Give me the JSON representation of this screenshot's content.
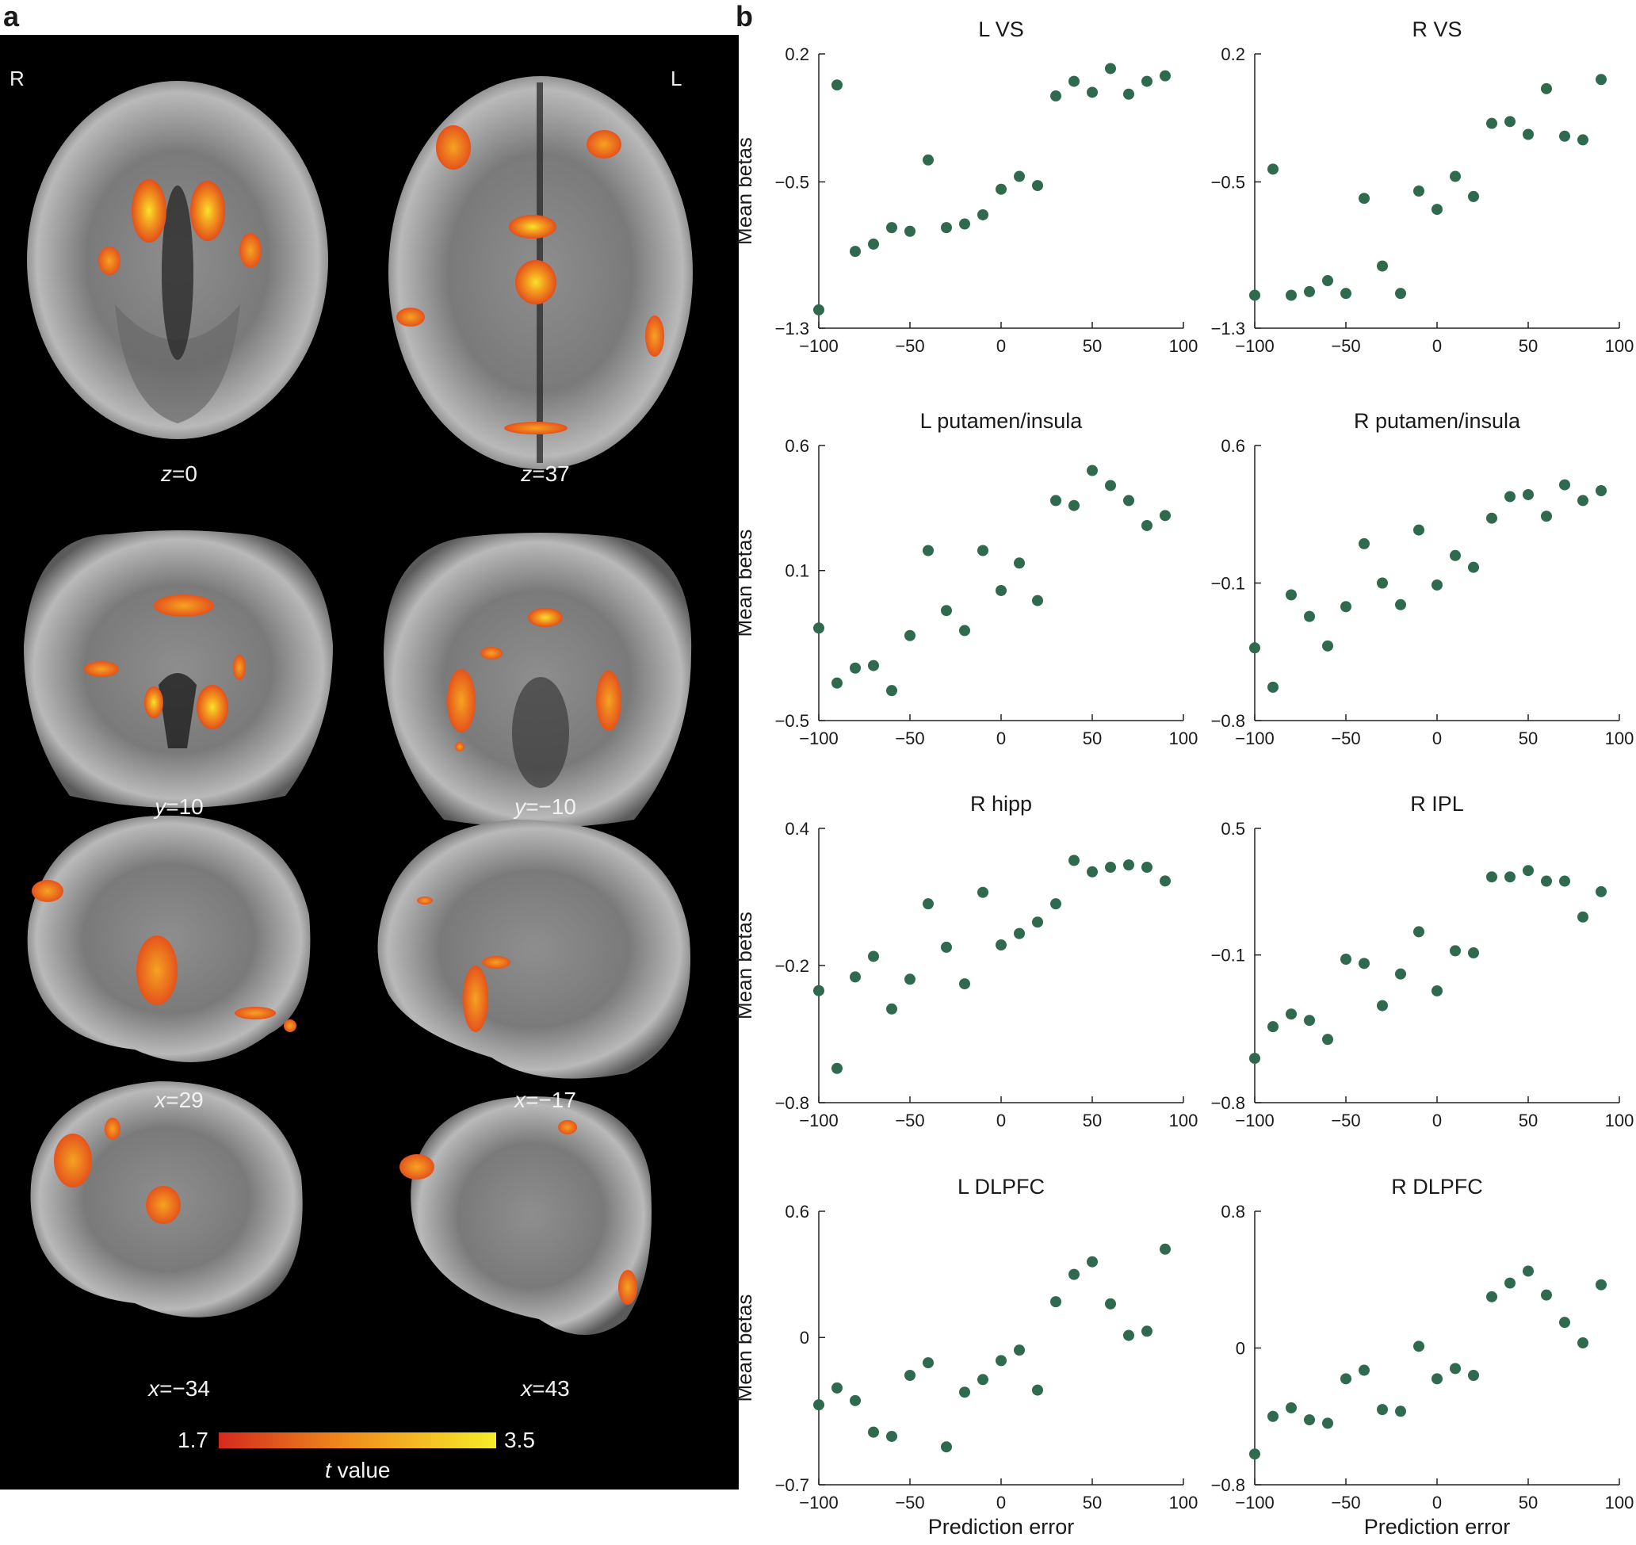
{
  "panel_a": {
    "letter": "a",
    "orient_left": "R",
    "orient_right": "L",
    "slices": [
      {
        "name": "z",
        "value": "0"
      },
      {
        "name": "z",
        "value": "37"
      },
      {
        "name": "y",
        "value": "10"
      },
      {
        "name": "y",
        "value": "−10"
      },
      {
        "name": "x",
        "value": "29"
      },
      {
        "name": "x",
        "value": "−17"
      },
      {
        "name": "x",
        "value": "−34"
      },
      {
        "name": "x",
        "value": "43"
      }
    ],
    "colorbar": {
      "min_label": "1.7",
      "max_label": "3.5",
      "label_var": "t",
      "label_rest": " value",
      "low_color": "#d42a1e",
      "mid_color": "#f08a1c",
      "high_color": "#f6ec2a"
    }
  },
  "panel_b": {
    "letter": "b"
  },
  "colors": {
    "dot": "#2f6a4f",
    "brain_bg": "#000000"
  },
  "chart_data": [
    {
      "type": "scatter",
      "title": "L VS",
      "ylabel": "Mean betas",
      "xlabel": "",
      "xlim": [
        -100,
        100
      ],
      "ylim": [
        -1.3,
        0.2
      ],
      "xticks": [
        -100,
        -50,
        0,
        50,
        100
      ],
      "yticks": [
        -1.3,
        -0.5,
        0.2
      ],
      "xticklabels": [
        "−100",
        "−50",
        "0",
        "50",
        "100"
      ],
      "yticklabels": [
        "−1.3",
        "−0.5",
        "0.2"
      ],
      "x": [
        -100,
        -90,
        -80,
        -70,
        -60,
        -50,
        -40,
        -30,
        -20,
        -10,
        0,
        10,
        20,
        30,
        40,
        50,
        60,
        70,
        80,
        90
      ],
      "y": [
        -1.2,
        0.03,
        -0.88,
        -0.84,
        -0.75,
        -0.77,
        -0.38,
        -0.75,
        -0.73,
        -0.68,
        -0.54,
        -0.47,
        -0.52,
        -0.03,
        0.05,
        -0.01,
        0.12,
        -0.02,
        0.05,
        0.08
      ]
    },
    {
      "type": "scatter",
      "title": "R VS",
      "ylabel": "",
      "xlabel": "",
      "xlim": [
        -100,
        100
      ],
      "ylim": [
        -1.3,
        0.2
      ],
      "xticks": [
        -100,
        -50,
        0,
        50,
        100
      ],
      "yticks": [
        -1.3,
        -0.5,
        0.2
      ],
      "xticklabels": [
        "−100",
        "−50",
        "0",
        "50",
        "100"
      ],
      "yticklabels": [
        "−1.3",
        "−0.5",
        "0.2"
      ],
      "x": [
        -100,
        -90,
        -80,
        -70,
        -60,
        -50,
        -40,
        -30,
        -20,
        -10,
        0,
        10,
        20,
        30,
        40,
        50,
        60,
        70,
        80,
        90
      ],
      "y": [
        -1.12,
        -0.43,
        -1.12,
        -1.1,
        -1.04,
        -1.11,
        -0.59,
        -0.96,
        -1.11,
        -0.55,
        -0.65,
        -0.47,
        -0.58,
        -0.18,
        -0.17,
        -0.24,
        0.01,
        -0.25,
        -0.27,
        0.06
      ]
    },
    {
      "type": "scatter",
      "title": "L putamen/insula",
      "ylabel": "Mean betas",
      "xlabel": "",
      "xlim": [
        -100,
        100
      ],
      "ylim": [
        -0.5,
        0.6
      ],
      "xticks": [
        -100,
        -50,
        0,
        50,
        100
      ],
      "yticks": [
        -0.5,
        0.1,
        0.6
      ],
      "xticklabels": [
        "−100",
        "−50",
        "0",
        "50",
        "100"
      ],
      "yticklabels": [
        "−0.5",
        "0.1",
        "0.6"
      ],
      "x": [
        -100,
        -90,
        -80,
        -70,
        -60,
        -50,
        -40,
        -30,
        -20,
        -10,
        0,
        10,
        20,
        30,
        40,
        50,
        60,
        70,
        80,
        90
      ],
      "y": [
        -0.13,
        -0.35,
        -0.29,
        -0.28,
        -0.38,
        -0.16,
        0.18,
        -0.06,
        -0.14,
        0.18,
        0.02,
        0.13,
        -0.02,
        0.38,
        0.36,
        0.5,
        0.44,
        0.38,
        0.28,
        0.32
      ]
    },
    {
      "type": "scatter",
      "title": "R putamen/insula",
      "ylabel": "",
      "xlabel": "",
      "xlim": [
        -100,
        100
      ],
      "ylim": [
        -0.8,
        0.6
      ],
      "xticks": [
        -100,
        -50,
        0,
        50,
        100
      ],
      "yticks": [
        -0.8,
        -0.1,
        0.6
      ],
      "xticklabels": [
        "−100",
        "−50",
        "0",
        "50",
        "100"
      ],
      "yticklabels": [
        "−0.8",
        "−0.1",
        "0.6"
      ],
      "x": [
        -100,
        -90,
        -80,
        -70,
        -60,
        -50,
        -40,
        -30,
        -20,
        -10,
        0,
        10,
        20,
        30,
        40,
        50,
        60,
        70,
        80,
        90
      ],
      "y": [
        -0.43,
        -0.63,
        -0.16,
        -0.27,
        -0.42,
        -0.22,
        0.1,
        -0.1,
        -0.21,
        0.17,
        -0.11,
        0.04,
        -0.02,
        0.23,
        0.34,
        0.35,
        0.24,
        0.4,
        0.32,
        0.37
      ]
    },
    {
      "type": "scatter",
      "title": "R hipp",
      "ylabel": "Mean betas",
      "xlabel": "",
      "xlim": [
        -100,
        100
      ],
      "ylim": [
        -0.8,
        0.4
      ],
      "xticks": [
        -100,
        -50,
        0,
        50,
        100
      ],
      "yticks": [
        -0.8,
        -0.2,
        0.4
      ],
      "xticklabels": [
        "−100",
        "−50",
        "0",
        "50",
        "100"
      ],
      "yticklabels": [
        "−0.8",
        "−0.2",
        "0.4"
      ],
      "x": [
        -100,
        -90,
        -80,
        -70,
        -60,
        -50,
        -40,
        -30,
        -20,
        -10,
        0,
        10,
        20,
        30,
        40,
        50,
        60,
        70,
        80,
        90
      ],
      "y": [
        -0.31,
        -0.65,
        -0.25,
        -0.16,
        -0.39,
        -0.26,
        0.07,
        -0.12,
        -0.28,
        0.12,
        -0.11,
        -0.06,
        -0.01,
        0.07,
        0.26,
        0.21,
        0.23,
        0.24,
        0.23,
        0.17
      ]
    },
    {
      "type": "scatter",
      "title": "R IPL",
      "ylabel": "",
      "xlabel": "",
      "xlim": [
        -100,
        100
      ],
      "ylim": [
        -0.8,
        0.5
      ],
      "xticks": [
        -100,
        -50,
        0,
        50,
        100
      ],
      "yticks": [
        -0.8,
        -0.1,
        0.5
      ],
      "xticklabels": [
        "−100",
        "−50",
        "0",
        "50",
        "100"
      ],
      "yticklabels": [
        "−0.8",
        "−0.1",
        "0.5"
      ],
      "x": [
        -100,
        -90,
        -80,
        -70,
        -60,
        -50,
        -40,
        -30,
        -20,
        -10,
        0,
        10,
        20,
        30,
        40,
        50,
        60,
        70,
        80,
        90
      ],
      "y": [
        -0.59,
        -0.44,
        -0.38,
        -0.41,
        -0.5,
        -0.12,
        -0.14,
        -0.34,
        -0.19,
        0.01,
        -0.27,
        -0.08,
        -0.09,
        0.27,
        0.27,
        0.3,
        0.25,
        0.25,
        0.08,
        0.2
      ]
    },
    {
      "type": "scatter",
      "title": "L DLPFC",
      "ylabel": "Mean betas",
      "xlabel": "Prediction error",
      "xlim": [
        -100,
        100
      ],
      "ylim": [
        -0.7,
        0.6
      ],
      "xticks": [
        -100,
        -50,
        0,
        50,
        100
      ],
      "yticks": [
        -0.7,
        0,
        0.6
      ],
      "xticklabels": [
        "−100",
        "−50",
        "0",
        "50",
        "100"
      ],
      "yticklabels": [
        "−0.7",
        "0",
        "0.6"
      ],
      "x": [
        -100,
        -90,
        -80,
        -70,
        -60,
        -50,
        -40,
        -30,
        -20,
        -10,
        0,
        10,
        20,
        30,
        40,
        50,
        60,
        70,
        80,
        90
      ],
      "y": [
        -0.32,
        -0.24,
        -0.3,
        -0.45,
        -0.47,
        -0.18,
        -0.12,
        -0.52,
        -0.26,
        -0.2,
        -0.11,
        -0.06,
        -0.25,
        0.17,
        0.3,
        0.36,
        0.16,
        0.01,
        0.03,
        0.42
      ]
    },
    {
      "type": "scatter",
      "title": "R DLPFC",
      "ylabel": "",
      "xlabel": "Prediction error",
      "xlim": [
        -100,
        100
      ],
      "ylim": [
        -0.8,
        0.8
      ],
      "xticks": [
        -100,
        -50,
        0,
        50,
        100
      ],
      "yticks": [
        -0.8,
        0,
        0.8
      ],
      "xticklabels": [
        "−100",
        "−50",
        "0",
        "50",
        "100"
      ],
      "yticklabels": [
        "−0.8",
        "0",
        "0.8"
      ],
      "x": [
        -100,
        -90,
        -80,
        -70,
        -60,
        -50,
        -40,
        -30,
        -20,
        -10,
        0,
        10,
        20,
        30,
        40,
        50,
        60,
        70,
        80,
        90
      ],
      "y": [
        -0.62,
        -0.4,
        -0.35,
        -0.42,
        -0.44,
        -0.18,
        -0.13,
        -0.36,
        -0.37,
        0.01,
        -0.18,
        -0.12,
        -0.16,
        0.3,
        0.38,
        0.45,
        0.31,
        0.15,
        0.03,
        0.37
      ]
    }
  ]
}
